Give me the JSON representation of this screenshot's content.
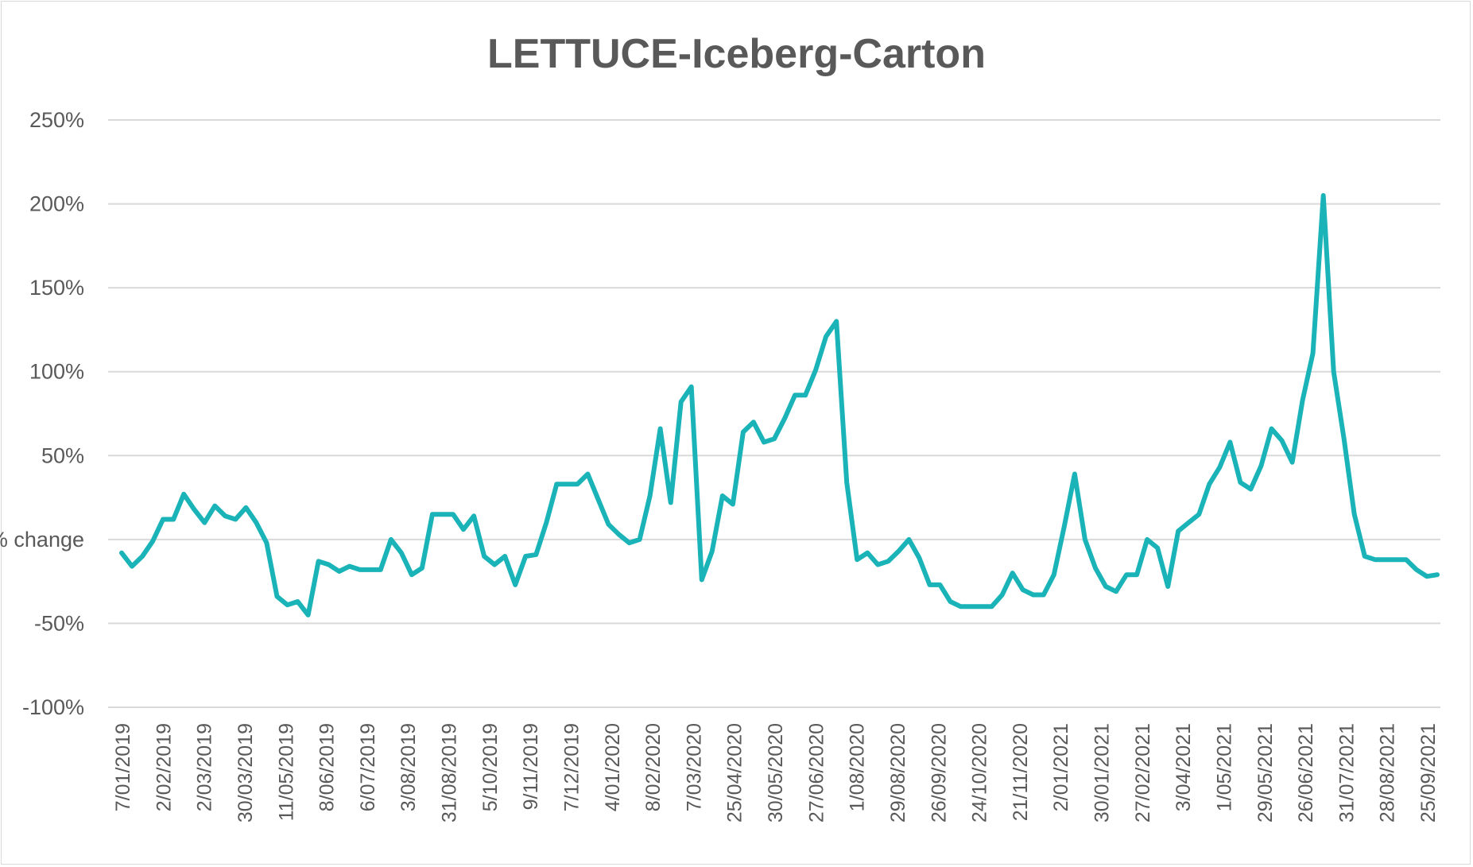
{
  "chart_data": {
    "type": "line",
    "title": "LETTUCE-Iceberg-Carton",
    "ylabel": "% change",
    "xlabel": "",
    "ylim": [
      -100,
      250
    ],
    "yticks": [
      "250%",
      "200%",
      "150%",
      "100%",
      "50%",
      "",
      "-50%",
      "-100%"
    ],
    "yticks_values": [
      250,
      200,
      150,
      100,
      50,
      0,
      -50,
      -100
    ],
    "grid": true,
    "legend": "none",
    "line_color": "#1ab3b8",
    "x_tick_labels": [
      "7/01/2019",
      "2/02/2019",
      "2/03/2019",
      "30/03/2019",
      "11/05/2019",
      "8/06/2019",
      "6/07/2019",
      "3/08/2019",
      "31/08/2019",
      "5/10/2019",
      "9/11/2019",
      "7/12/2019",
      "4/01/2020",
      "8/02/2020",
      "7/03/2020",
      "25/04/2020",
      "30/05/2020",
      "27/06/2020",
      "1/08/2020",
      "29/08/2020",
      "26/09/2020",
      "24/10/2020",
      "21/11/2020",
      "2/01/2021",
      "30/01/2021",
      "27/02/2021",
      "3/04/2021",
      "1/05/2021",
      "29/05/2021",
      "26/06/2021",
      "31/07/2021",
      "28/08/2021",
      "25/09/2021"
    ],
    "series": [
      {
        "values": [
          -8,
          -16,
          -10,
          -1,
          12,
          12,
          27,
          18,
          10,
          20,
          14,
          12,
          19,
          10,
          -2,
          -34,
          -39,
          -37,
          -45,
          -13,
          -15,
          -19,
          -16,
          -18,
          -18,
          -18,
          0,
          -8,
          -21,
          -17,
          15,
          15,
          15,
          6,
          14,
          -10,
          -15,
          -10,
          -27,
          -10,
          -9,
          10,
          33,
          33,
          33,
          39,
          24,
          9,
          3,
          -2,
          0,
          26,
          66,
          22,
          82,
          91,
          -24,
          -7,
          26,
          21,
          64,
          70,
          58,
          60,
          72,
          86,
          86,
          101,
          121,
          130,
          34,
          -12,
          -8,
          -15,
          -13,
          -7,
          0,
          -11,
          -27,
          -27,
          -37,
          -40,
          -40,
          -40,
          -40,
          -33,
          -20,
          -30,
          -33,
          -33,
          -21,
          8,
          39,
          0,
          -17,
          -28,
          -31,
          -21,
          -21,
          0,
          -5,
          -28,
          5,
          10,
          15,
          33,
          43,
          58,
          34,
          30,
          44,
          66,
          59,
          46,
          83,
          111,
          205,
          100,
          60,
          15,
          -10,
          -12,
          -12,
          -12,
          -12,
          -18,
          -22,
          -21
        ]
      }
    ]
  }
}
